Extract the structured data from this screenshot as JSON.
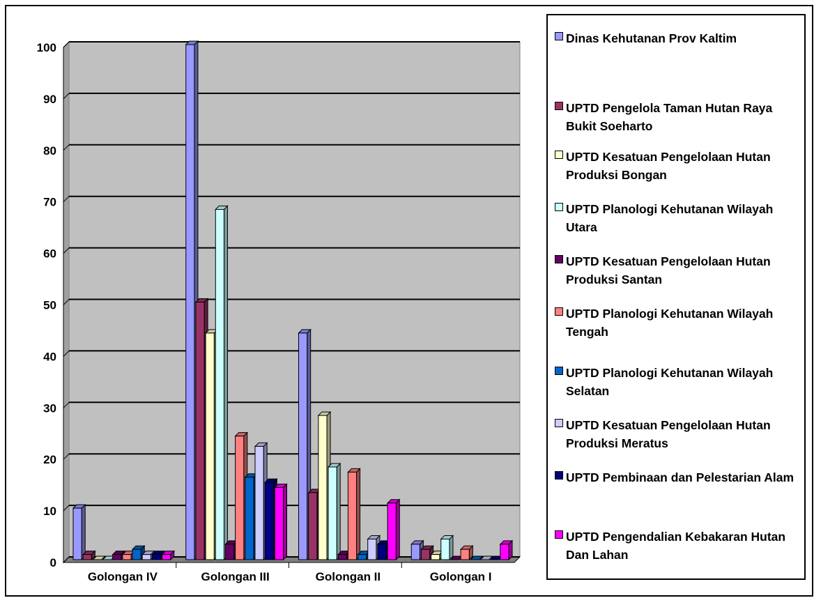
{
  "chart_data": {
    "type": "bar",
    "categories": [
      "Golongan IV",
      "Golongan III",
      "Golongan II",
      "Golongan I"
    ],
    "ylim": [
      0,
      100
    ],
    "yticks": [
      0,
      10,
      20,
      30,
      40,
      50,
      60,
      70,
      80,
      90,
      100
    ],
    "grid": true,
    "legend_position": "right",
    "series": [
      {
        "name": "Dinas Kehutanan Prov Kaltim",
        "color": "#9999ff",
        "values": [
          10,
          100,
          44,
          3
        ]
      },
      {
        "name": "UPTD Pengelola Taman Hutan Raya Bukit Soeharto",
        "color": "#993366",
        "values": [
          1,
          50,
          13,
          2
        ]
      },
      {
        "name": "UPTD Kesatuan Pengelolaan Hutan Produksi Bongan",
        "color": "#ffffcc",
        "values": [
          0,
          44,
          28,
          1
        ]
      },
      {
        "name": "UPTD Planologi Kehutanan Wilayah Utara",
        "color": "#ccffff",
        "values": [
          0,
          68,
          18,
          4
        ]
      },
      {
        "name": "UPTD Kesatuan Pengelolaan Hutan Produksi Santan",
        "color": "#660066",
        "values": [
          1,
          3,
          1,
          0
        ]
      },
      {
        "name": "UPTD Planologi Kehutanan Wilayah Tengah",
        "color": "#ff8080",
        "values": [
          1,
          24,
          17,
          2
        ]
      },
      {
        "name": "UPTD Planologi Kehutanan Wilayah Selatan",
        "color": "#0066cc",
        "values": [
          2,
          16,
          1,
          0
        ]
      },
      {
        "name": "UPTD Kesatuan Pengelolaan Hutan Produksi Meratus",
        "color": "#ccccff",
        "values": [
          1,
          22,
          4,
          0
        ]
      },
      {
        "name": "UPTD Pembinaan dan Pelestarian Alam",
        "color": "#000080",
        "values": [
          1,
          15,
          3,
          0
        ]
      },
      {
        "name": "UPTD Pengendalian Kebakaran Hutan Dan Lahan",
        "color": "#ff00ff",
        "values": [
          1,
          14,
          11,
          3
        ]
      }
    ]
  }
}
